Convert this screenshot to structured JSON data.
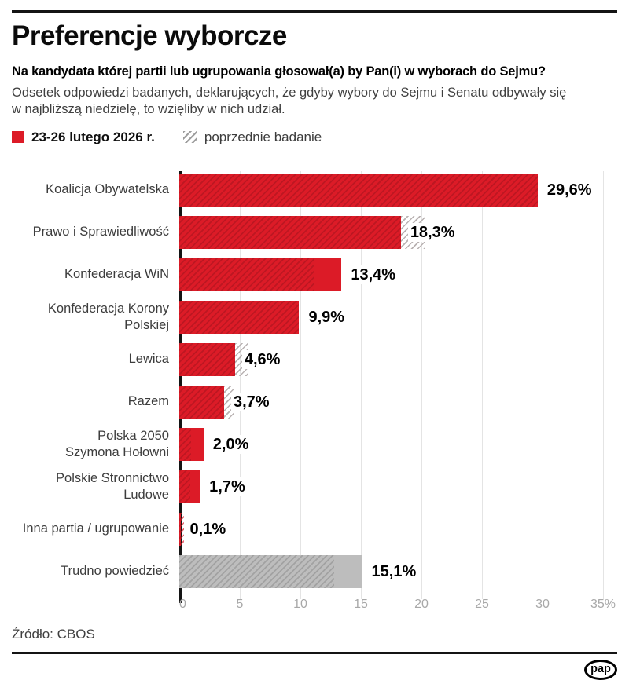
{
  "header": {
    "title": "Preferencje wyborcze",
    "question": "Na kandydata której partii lub ugrupowania głosował(a) by Pan(i) w wyborach do Sejmu?",
    "description_line1": "Odsetek odpowiedzi badanych, deklarujących, że gdyby wybory do Sejmu i Senatu odbywały się",
    "description_line2": "w najbliższą niedzielę, to wzięliby w nich udział."
  },
  "legend": {
    "current_label": "23-26 lutego 2026 r.",
    "previous_label": "poprzednie badanie"
  },
  "colors": {
    "current_bar": "#dc1b27",
    "undecided_bar": "#bdbdbd",
    "previous_hatch_line": "#b9b2b2",
    "gridline": "#e4e4e4",
    "axis": "#141414"
  },
  "chart_data": {
    "type": "bar",
    "orientation": "horizontal",
    "unit": "%",
    "xlim": [
      0,
      35
    ],
    "x_ticks": [
      0,
      5,
      10,
      15,
      20,
      25,
      30,
      35
    ],
    "x_tick_labels": [
      "0",
      "5",
      "10",
      "15",
      "20",
      "25",
      "30",
      "35%"
    ],
    "grid": true,
    "legend_position": "top",
    "categories": [
      "Koalicja Obywatelska",
      "Prawo i Sprawiedliwość",
      "Konfederacja WiN",
      "Konfederacja Korony Polskiej",
      "Lewica",
      "Razem",
      "Polska 2050 Szymona Hołowni",
      "Polskie Stronnictwo Ludowe",
      "Inna partia / ugrupowanie",
      "Trudno powiedzieć"
    ],
    "series": [
      {
        "name": "23-26 lutego 2026 r.",
        "values": [
          29.6,
          18.3,
          13.4,
          9.9,
          4.6,
          3.7,
          2.0,
          1.7,
          0.1,
          15.1
        ]
      },
      {
        "name": "poprzednie badanie",
        "values": [
          29.6,
          20.3,
          11.2,
          9.9,
          5.7,
          4.5,
          1.0,
          0.9,
          0.4,
          12.8
        ]
      }
    ],
    "rows": [
      {
        "label_lines": [
          "Koalicja Obywatelska"
        ],
        "value": 29.6,
        "value_label": "29,6%",
        "previous": 29.6,
        "style": "red"
      },
      {
        "label_lines": [
          "Prawo i Sprawiedliwość"
        ],
        "value": 18.3,
        "value_label": "18,3%",
        "previous": 20.3,
        "style": "red"
      },
      {
        "label_lines": [
          "Konfederacja WiN"
        ],
        "value": 13.4,
        "value_label": "13,4%",
        "previous": 11.2,
        "style": "red"
      },
      {
        "label_lines": [
          "Konfederacja Korony",
          "Polskiej"
        ],
        "value": 9.9,
        "value_label": "9,9%",
        "previous": 9.9,
        "style": "red"
      },
      {
        "label_lines": [
          "Lewica"
        ],
        "value": 4.6,
        "value_label": "4,6%",
        "previous": 5.7,
        "style": "red"
      },
      {
        "label_lines": [
          "Razem"
        ],
        "value": 3.7,
        "value_label": "3,7%",
        "previous": 4.5,
        "style": "red"
      },
      {
        "label_lines": [
          "Polska 2050",
          "Szymona Hołowni"
        ],
        "value": 2.0,
        "value_label": "2,0%",
        "previous": 1.0,
        "style": "red"
      },
      {
        "label_lines": [
          "Polskie Stronnictwo",
          "Ludowe"
        ],
        "value": 1.7,
        "value_label": "1,7%",
        "previous": 0.9,
        "style": "red"
      },
      {
        "label_lines": [
          "Inna partia / ugrupowanie"
        ],
        "value": 0.1,
        "value_label": "0,1%",
        "previous": 0.4,
        "style": "red",
        "ext_hatch": "red-lines"
      },
      {
        "label_lines": [
          "Trudno powiedzieć"
        ],
        "value": 15.1,
        "value_label": "15,1%",
        "previous": 12.8,
        "style": "gray"
      }
    ],
    "title": "Preferencje wyborcze",
    "xlabel": "",
    "ylabel": ""
  },
  "footer": {
    "source": "Źródło: CBOS",
    "logo_text": "pap"
  }
}
